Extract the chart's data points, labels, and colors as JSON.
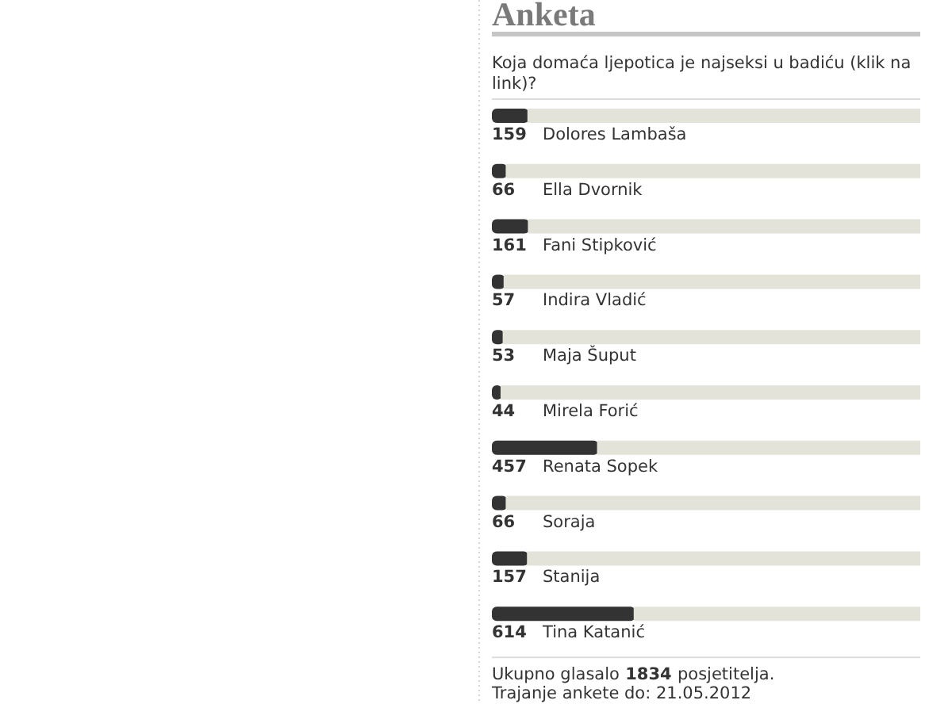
{
  "chart_data": {
    "type": "bar",
    "orientation": "horizontal",
    "title": "Anketa",
    "subtitle": "Koja domaća ljepotica je najseksi u badiću (klik na link)?",
    "categories": [
      "Dolores Lambaša",
      "Ella Dvornik",
      "Fani Stipković",
      "Indira Vladić",
      "Maja Šuput",
      "Mirela Forić",
      "Renata Sopek",
      "Soraja",
      "Stanija",
      "Tina Katanić"
    ],
    "values": [
      159,
      66,
      161,
      57,
      53,
      44,
      457,
      66,
      157,
      614
    ],
    "color": "#333333",
    "data_labels": true,
    "tick_labels": "y",
    "annotations": [
      "Ukupno glasalo 1834 posjetitelja.",
      "Trajanje ankete do: 21.05.2012"
    ]
  }
}
